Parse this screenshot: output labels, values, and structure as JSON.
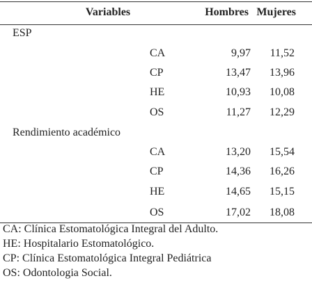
{
  "table": {
    "header": [
      "Variables",
      "Hombres",
      "Mujeres"
    ],
    "groups": [
      {
        "label": "ESP",
        "rows": [
          [
            "CA",
            "9,97",
            "11,52"
          ],
          [
            "CP",
            "13,47",
            "13,96"
          ],
          [
            "HE",
            "10,93",
            "10,08"
          ],
          [
            "OS",
            "11,27",
            "12,29"
          ]
        ]
      },
      {
        "label": "Rendimiento académico",
        "rows": [
          [
            "CA",
            "13,20",
            "15,54"
          ],
          [
            "CP",
            "14,36",
            "16,26"
          ],
          [
            "HE",
            "14,65",
            "15,15"
          ],
          [
            "OS",
            "17,02",
            "18,08"
          ]
        ]
      }
    ],
    "footnotes": [
      "CA: Clínica Estomatológica Integral del Adulto.",
      "HE: Hospitalario Estomatológico.",
      "CP: Clínica Estomatológica Integral Pediátrica",
      "OS: Odontologia Social."
    ]
  }
}
